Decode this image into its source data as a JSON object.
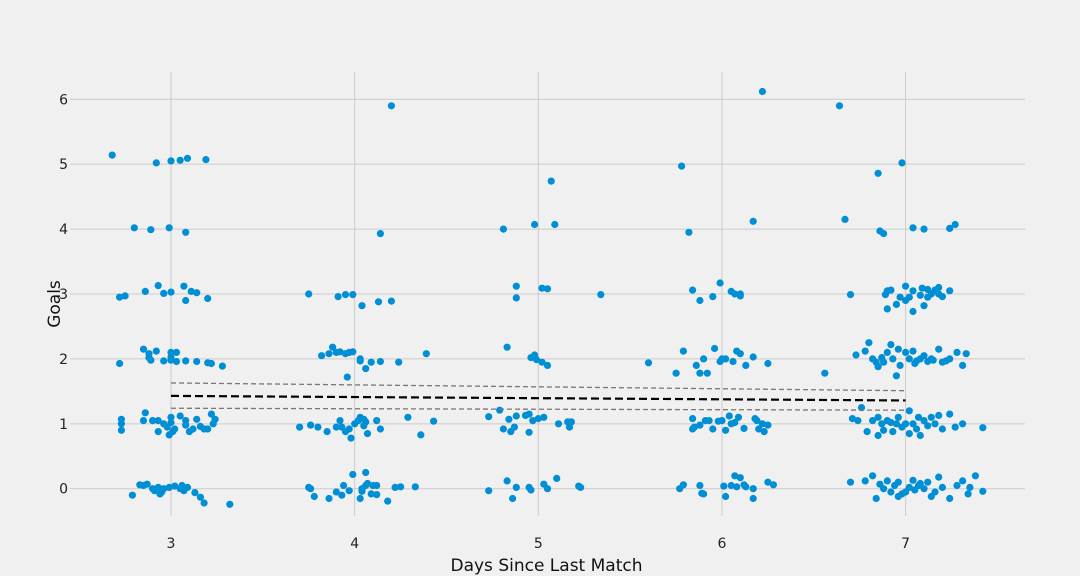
{
  "colors": {
    "background": "#f0f0f0",
    "grid": "#cbcbcb",
    "point": "#008fd5",
    "trend": "#000000",
    "ci": "#777777"
  },
  "chart_data": {
    "type": "scatter",
    "title": "",
    "xlabel": "Days Since Last Match",
    "ylabel": "Goals",
    "xlim": [
      2.45,
      7.65
    ],
    "ylim": [
      -0.42,
      6.42
    ],
    "xticks": [
      3,
      4,
      5,
      6,
      7
    ],
    "yticks": [
      0,
      1,
      2,
      3,
      4,
      5,
      6
    ],
    "grid": true,
    "trend": {
      "x": [
        3,
        7
      ],
      "y": [
        1.43,
        1.36
      ]
    },
    "ci_upper": {
      "x": [
        3,
        7
      ],
      "y": [
        1.63,
        1.51
      ]
    },
    "ci_lower": {
      "x": [
        3,
        7
      ],
      "y": [
        1.24,
        1.21
      ]
    },
    "points": [
      [
        2.68,
        5.14
      ],
      [
        2.92,
        5.02
      ],
      [
        3.0,
        5.05
      ],
      [
        3.05,
        5.06
      ],
      [
        3.09,
        5.09
      ],
      [
        3.19,
        5.07
      ],
      [
        2.8,
        4.02
      ],
      [
        2.89,
        3.99
      ],
      [
        2.99,
        4.02
      ],
      [
        3.08,
        3.95
      ],
      [
        2.72,
        2.95
      ],
      [
        2.75,
        2.97
      ],
      [
        2.86,
        3.04
      ],
      [
        2.93,
        3.13
      ],
      [
        2.96,
        3.01
      ],
      [
        3.0,
        3.03
      ],
      [
        3.07,
        3.12
      ],
      [
        3.08,
        2.9
      ],
      [
        3.11,
        3.04
      ],
      [
        3.14,
        3.02
      ],
      [
        3.2,
        2.93
      ],
      [
        2.72,
        1.93
      ],
      [
        2.85,
        2.15
      ],
      [
        2.88,
        2.08
      ],
      [
        2.88,
        2.02
      ],
      [
        2.89,
        1.98
      ],
      [
        2.92,
        2.12
      ],
      [
        2.96,
        1.97
      ],
      [
        3.0,
        2.03
      ],
      [
        3.0,
        1.98
      ],
      [
        3.0,
        2.1
      ],
      [
        3.03,
        2.1
      ],
      [
        3.03,
        1.96
      ],
      [
        3.08,
        1.97
      ],
      [
        3.14,
        1.96
      ],
      [
        3.2,
        1.94
      ],
      [
        3.22,
        1.93
      ],
      [
        3.28,
        1.89
      ],
      [
        2.73,
        1.07
      ],
      [
        2.73,
        1.0
      ],
      [
        2.73,
        0.9
      ],
      [
        2.85,
        1.05
      ],
      [
        2.86,
        1.17
      ],
      [
        2.9,
        1.05
      ],
      [
        2.93,
        1.05
      ],
      [
        2.93,
        0.88
      ],
      [
        2.96,
        1.0
      ],
      [
        2.98,
        0.95
      ],
      [
        2.99,
        0.83
      ],
      [
        3.0,
        1.1
      ],
      [
        3.0,
        1.02
      ],
      [
        3.01,
        0.88
      ],
      [
        3.02,
        0.92
      ],
      [
        3.05,
        1.12
      ],
      [
        3.08,
        1.05
      ],
      [
        3.08,
        0.98
      ],
      [
        3.1,
        0.88
      ],
      [
        3.12,
        0.92
      ],
      [
        3.14,
        1.07
      ],
      [
        3.16,
        0.96
      ],
      [
        3.18,
        0.92
      ],
      [
        3.2,
        0.92
      ],
      [
        3.22,
        1.15
      ],
      [
        3.23,
        1.0
      ],
      [
        3.24,
        1.07
      ],
      [
        2.79,
        -0.1
      ],
      [
        2.83,
        0.06
      ],
      [
        2.85,
        0.05
      ],
      [
        2.87,
        0.07
      ],
      [
        2.9,
        0.0
      ],
      [
        2.91,
        -0.03
      ],
      [
        2.93,
        0.02
      ],
      [
        2.95,
        -0.05
      ],
      [
        2.96,
        0.0
      ],
      [
        2.99,
        0.02
      ],
      [
        3.02,
        0.04
      ],
      [
        3.05,
        0.0
      ],
      [
        3.06,
        0.05
      ],
      [
        3.07,
        -0.03
      ],
      [
        3.09,
        0.02
      ],
      [
        3.13,
        -0.06
      ],
      [
        3.16,
        -0.13
      ],
      [
        3.18,
        -0.22
      ],
      [
        3.32,
        -0.24
      ],
      [
        2.94,
        -0.08
      ],
      [
        4.2,
        5.9
      ],
      [
        4.14,
        3.93
      ],
      [
        3.75,
        3.0
      ],
      [
        3.91,
        2.96
      ],
      [
        3.95,
        2.99
      ],
      [
        3.99,
        2.99
      ],
      [
        4.04,
        2.82
      ],
      [
        4.13,
        2.88
      ],
      [
        4.2,
        2.89
      ],
      [
        3.82,
        2.05
      ],
      [
        3.86,
        2.08
      ],
      [
        3.88,
        2.18
      ],
      [
        3.9,
        2.1
      ],
      [
        3.92,
        2.11
      ],
      [
        3.95,
        2.08
      ],
      [
        3.97,
        2.1
      ],
      [
        3.99,
        2.11
      ],
      [
        4.03,
        1.97
      ],
      [
        4.03,
        2.0
      ],
      [
        4.06,
        1.85
      ],
      [
        4.09,
        1.95
      ],
      [
        4.14,
        1.96
      ],
      [
        4.24,
        1.95
      ],
      [
        4.39,
        2.08
      ],
      [
        3.96,
        1.72
      ],
      [
        3.7,
        0.95
      ],
      [
        3.76,
        0.98
      ],
      [
        3.8,
        0.95
      ],
      [
        3.85,
        0.88
      ],
      [
        3.9,
        0.95
      ],
      [
        3.92,
        1.05
      ],
      [
        3.93,
        0.95
      ],
      [
        3.95,
        0.88
      ],
      [
        3.97,
        0.92
      ],
      [
        3.98,
        0.78
      ],
      [
        4.0,
        1.0
      ],
      [
        4.02,
        1.05
      ],
      [
        4.03,
        1.1
      ],
      [
        4.05,
        1.07
      ],
      [
        4.05,
        0.97
      ],
      [
        4.06,
        1.03
      ],
      [
        4.07,
        0.85
      ],
      [
        4.12,
        1.05
      ],
      [
        4.14,
        0.92
      ],
      [
        4.29,
        1.1
      ],
      [
        4.36,
        0.83
      ],
      [
        4.43,
        1.04
      ],
      [
        3.75,
        0.02
      ],
      [
        3.76,
        0.0
      ],
      [
        3.78,
        -0.12
      ],
      [
        3.86,
        -0.15
      ],
      [
        3.9,
        -0.05
      ],
      [
        3.93,
        -0.1
      ],
      [
        3.94,
        0.05
      ],
      [
        3.97,
        -0.03
      ],
      [
        3.99,
        0.22
      ],
      [
        4.03,
        -0.15
      ],
      [
        4.04,
        0.0
      ],
      [
        4.04,
        -0.04
      ],
      [
        4.06,
        0.05
      ],
      [
        4.06,
        0.25
      ],
      [
        4.07,
        0.08
      ],
      [
        4.09,
        -0.08
      ],
      [
        4.1,
        0.05
      ],
      [
        4.12,
        0.05
      ],
      [
        4.12,
        -0.09
      ],
      [
        4.18,
        -0.19
      ],
      [
        4.22,
        0.02
      ],
      [
        4.25,
        0.03
      ],
      [
        4.33,
        0.03
      ],
      [
        5.07,
        4.74
      ],
      [
        4.81,
        4.0
      ],
      [
        4.98,
        4.07
      ],
      [
        5.09,
        4.07
      ],
      [
        4.88,
        3.12
      ],
      [
        4.88,
        2.94
      ],
      [
        5.02,
        3.09
      ],
      [
        5.05,
        3.08
      ],
      [
        5.34,
        2.99
      ],
      [
        4.83,
        2.18
      ],
      [
        4.96,
        2.02
      ],
      [
        4.98,
        2.06
      ],
      [
        4.99,
        1.99
      ],
      [
        5.02,
        1.95
      ],
      [
        5.05,
        1.9
      ],
      [
        4.73,
        1.11
      ],
      [
        4.79,
        1.21
      ],
      [
        4.81,
        0.92
      ],
      [
        4.84,
        1.07
      ],
      [
        4.85,
        0.88
      ],
      [
        4.87,
        0.95
      ],
      [
        4.88,
        1.12
      ],
      [
        4.93,
        1.13
      ],
      [
        4.95,
        1.15
      ],
      [
        4.95,
        0.87
      ],
      [
        4.97,
        1.05
      ],
      [
        5.0,
        1.08
      ],
      [
        5.03,
        1.1
      ],
      [
        5.11,
        1.0
      ],
      [
        5.16,
        1.03
      ],
      [
        5.17,
        1.02
      ],
      [
        5.17,
        0.95
      ],
      [
        5.18,
        1.03
      ],
      [
        4.73,
        -0.03
      ],
      [
        4.83,
        0.12
      ],
      [
        4.86,
        -0.15
      ],
      [
        4.88,
        0.02
      ],
      [
        4.95,
        0.02
      ],
      [
        4.96,
        -0.02
      ],
      [
        5.03,
        0.07
      ],
      [
        5.05,
        0.0
      ],
      [
        5.1,
        0.16
      ],
      [
        5.22,
        0.04
      ],
      [
        5.23,
        0.02
      ],
      [
        6.22,
        6.12
      ],
      [
        5.78,
        4.97
      ],
      [
        5.82,
        3.95
      ],
      [
        6.17,
        4.12
      ],
      [
        5.84,
        3.06
      ],
      [
        5.88,
        2.9
      ],
      [
        5.95,
        2.96
      ],
      [
        5.99,
        3.17
      ],
      [
        6.05,
        3.04
      ],
      [
        6.07,
        3.0
      ],
      [
        6.1,
        2.97
      ],
      [
        6.1,
        3.0
      ],
      [
        5.6,
        1.94
      ],
      [
        5.75,
        1.78
      ],
      [
        5.79,
        2.12
      ],
      [
        5.86,
        1.9
      ],
      [
        5.88,
        1.78
      ],
      [
        5.92,
        1.78
      ],
      [
        5.9,
        2.0
      ],
      [
        5.96,
        2.16
      ],
      [
        5.99,
        1.96
      ],
      [
        6.0,
        2.0
      ],
      [
        6.02,
        2.0
      ],
      [
        6.06,
        1.96
      ],
      [
        6.08,
        2.12
      ],
      [
        6.1,
        2.08
      ],
      [
        6.13,
        1.9
      ],
      [
        6.17,
        2.03
      ],
      [
        6.25,
        1.93
      ],
      [
        6.56,
        1.78
      ],
      [
        5.84,
        1.08
      ],
      [
        5.84,
        0.92
      ],
      [
        5.85,
        0.95
      ],
      [
        5.88,
        0.98
      ],
      [
        5.91,
        1.05
      ],
      [
        5.93,
        1.05
      ],
      [
        5.95,
        0.92
      ],
      [
        5.98,
        1.04
      ],
      [
        6.0,
        1.05
      ],
      [
        6.02,
        0.9
      ],
      [
        6.04,
        1.12
      ],
      [
        6.05,
        1.0
      ],
      [
        6.07,
        1.02
      ],
      [
        6.09,
        1.1
      ],
      [
        6.12,
        0.93
      ],
      [
        6.18,
        1.08
      ],
      [
        6.19,
        1.05
      ],
      [
        6.2,
        0.92
      ],
      [
        6.22,
        1.0
      ],
      [
        6.23,
        0.88
      ],
      [
        6.25,
        0.98
      ],
      [
        5.77,
        0.0
      ],
      [
        5.79,
        0.06
      ],
      [
        5.88,
        0.05
      ],
      [
        5.89,
        -0.07
      ],
      [
        5.9,
        -0.08
      ],
      [
        6.01,
        0.04
      ],
      [
        6.02,
        -0.12
      ],
      [
        6.05,
        0.05
      ],
      [
        6.07,
        0.2
      ],
      [
        6.08,
        0.03
      ],
      [
        6.1,
        0.17
      ],
      [
        6.12,
        0.06
      ],
      [
        6.13,
        0.03
      ],
      [
        6.17,
        -0.15
      ],
      [
        6.17,
        0.0
      ],
      [
        6.25,
        0.1
      ],
      [
        6.28,
        0.06
      ],
      [
        6.64,
        5.9
      ],
      [
        6.98,
        5.02
      ],
      [
        6.85,
        4.86
      ],
      [
        6.67,
        4.15
      ],
      [
        6.86,
        3.97
      ],
      [
        6.88,
        3.93
      ],
      [
        7.04,
        4.02
      ],
      [
        7.1,
        4.0
      ],
      [
        7.27,
        4.07
      ],
      [
        7.24,
        4.01
      ],
      [
        6.7,
        2.99
      ],
      [
        6.89,
        2.99
      ],
      [
        6.9,
        3.05
      ],
      [
        6.92,
        3.06
      ],
      [
        6.9,
        2.77
      ],
      [
        6.95,
        2.84
      ],
      [
        6.97,
        2.95
      ],
      [
        7.0,
        3.12
      ],
      [
        7.0,
        2.9
      ],
      [
        7.02,
        2.95
      ],
      [
        7.04,
        3.05
      ],
      [
        7.04,
        2.73
      ],
      [
        7.08,
        2.98
      ],
      [
        7.09,
        3.09
      ],
      [
        7.1,
        2.82
      ],
      [
        7.12,
        2.95
      ],
      [
        7.12,
        3.07
      ],
      [
        7.14,
        3.0
      ],
      [
        7.16,
        3.06
      ],
      [
        7.18,
        3.0
      ],
      [
        7.18,
        3.1
      ],
      [
        7.2,
        2.96
      ],
      [
        7.24,
        3.05
      ],
      [
        6.73,
        2.06
      ],
      [
        6.78,
        2.12
      ],
      [
        6.8,
        2.25
      ],
      [
        6.82,
        2.0
      ],
      [
        6.84,
        1.95
      ],
      [
        6.85,
        1.88
      ],
      [
        6.87,
        2.02
      ],
      [
        6.88,
        1.95
      ],
      [
        6.9,
        2.1
      ],
      [
        6.92,
        2.22
      ],
      [
        6.93,
        2.0
      ],
      [
        6.95,
        1.74
      ],
      [
        6.96,
        2.15
      ],
      [
        6.97,
        1.9
      ],
      [
        7.0,
        2.1
      ],
      [
        7.02,
        2.0
      ],
      [
        7.04,
        2.12
      ],
      [
        7.05,
        1.93
      ],
      [
        7.08,
        2.0
      ],
      [
        7.1,
        2.05
      ],
      [
        7.12,
        1.96
      ],
      [
        7.14,
        2.0
      ],
      [
        7.18,
        2.15
      ],
      [
        7.2,
        1.95
      ],
      [
        7.24,
        2.0
      ],
      [
        7.28,
        2.1
      ],
      [
        7.31,
        1.9
      ],
      [
        7.33,
        2.08
      ],
      [
        7.15,
        1.98
      ],
      [
        7.22,
        1.97
      ],
      [
        7.06,
        1.97
      ],
      [
        6.71,
        1.08
      ],
      [
        6.74,
        1.05
      ],
      [
        6.76,
        1.25
      ],
      [
        6.79,
        0.88
      ],
      [
        6.82,
        1.05
      ],
      [
        6.85,
        0.82
      ],
      [
        6.87,
        1.0
      ],
      [
        6.88,
        0.9
      ],
      [
        6.9,
        1.05
      ],
      [
        6.92,
        1.02
      ],
      [
        6.93,
        0.88
      ],
      [
        6.95,
        1.0
      ],
      [
        6.96,
        1.1
      ],
      [
        6.98,
        0.95
      ],
      [
        7.0,
        1.0
      ],
      [
        7.02,
        0.85
      ],
      [
        7.02,
        1.2
      ],
      [
        7.04,
        1.0
      ],
      [
        7.06,
        0.92
      ],
      [
        7.07,
        1.1
      ],
      [
        7.08,
        0.82
      ],
      [
        7.1,
        1.05
      ],
      [
        7.12,
        0.97
      ],
      [
        7.14,
        1.1
      ],
      [
        7.16,
        1.0
      ],
      [
        7.18,
        1.13
      ],
      [
        7.2,
        0.92
      ],
      [
        7.24,
        1.15
      ],
      [
        7.27,
        0.95
      ],
      [
        7.31,
        1.0
      ],
      [
        7.42,
        0.94
      ],
      [
        6.85,
        1.1
      ],
      [
        6.7,
        0.1
      ],
      [
        6.78,
        0.12
      ],
      [
        6.82,
        0.2
      ],
      [
        6.84,
        -0.15
      ],
      [
        6.86,
        0.07
      ],
      [
        6.88,
        0.0
      ],
      [
        6.9,
        0.12
      ],
      [
        6.92,
        -0.05
      ],
      [
        6.94,
        0.05
      ],
      [
        6.96,
        0.1
      ],
      [
        6.98,
        -0.08
      ],
      [
        7.0,
        -0.05
      ],
      [
        7.02,
        0.02
      ],
      [
        7.04,
        0.13
      ],
      [
        7.05,
        -0.02
      ],
      [
        7.07,
        0.05
      ],
      [
        7.1,
        0.0
      ],
      [
        7.12,
        0.1
      ],
      [
        7.14,
        -0.12
      ],
      [
        7.16,
        -0.05
      ],
      [
        7.18,
        0.18
      ],
      [
        7.2,
        0.02
      ],
      [
        7.24,
        -0.15
      ],
      [
        7.28,
        0.05
      ],
      [
        7.31,
        0.12
      ],
      [
        7.34,
        -0.08
      ],
      [
        7.35,
        0.02
      ],
      [
        7.38,
        0.2
      ],
      [
        7.42,
        -0.04
      ],
      [
        6.96,
        -0.12
      ],
      [
        7.08,
        0.08
      ]
    ]
  }
}
